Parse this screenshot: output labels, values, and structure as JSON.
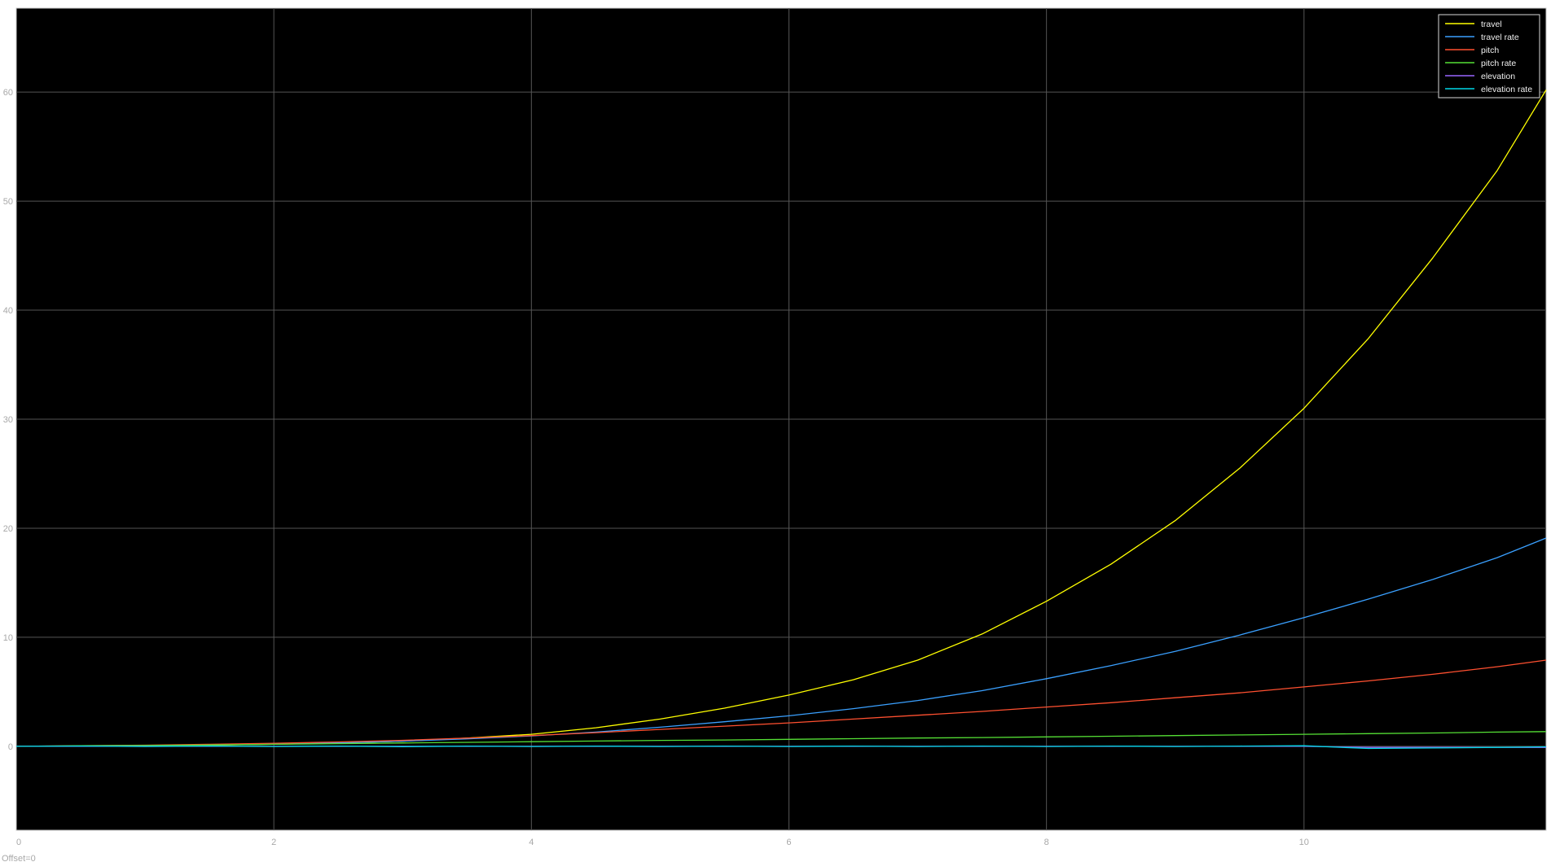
{
  "scope": {
    "offset_label": "Offset=0",
    "background_color": "#000000",
    "axes_color": "#c8c8c8",
    "grid_color": "#555555"
  },
  "chart_data": {
    "type": "line",
    "title": "",
    "xlabel": "",
    "ylabel": "",
    "xlim": [
      0,
      11.88
    ],
    "ylim": [
      -7.7,
      67.7
    ],
    "grid": true,
    "legend_position": "top-right",
    "x_ticks": [
      0,
      2,
      4,
      6,
      8,
      10
    ],
    "y_ticks": [
      0,
      10,
      20,
      30,
      40,
      50,
      60
    ],
    "x": [
      0,
      0.5,
      1,
      1.5,
      2,
      2.5,
      3,
      3.5,
      4,
      4.5,
      5,
      5.5,
      6,
      6.5,
      7,
      7.5,
      8,
      8.5,
      9,
      9.5,
      10,
      10.5,
      11,
      11.5,
      11.88
    ],
    "series": [
      {
        "name": "travel",
        "color": "#ffff00",
        "values": [
          0,
          0.02,
          0.05,
          0.1,
          0.18,
          0.3,
          0.47,
          0.75,
          1.1,
          1.7,
          2.5,
          3.5,
          4.7,
          6.1,
          7.9,
          10.3,
          13.3,
          16.7,
          20.7,
          25.5,
          31,
          37.4,
          44.8,
          52.8,
          60.2
        ]
      },
      {
        "name": "travel rate",
        "color": "#3aa0ff",
        "values": [
          0,
          0.03,
          0.06,
          0.12,
          0.2,
          0.32,
          0.47,
          0.68,
          0.95,
          1.3,
          1.75,
          2.25,
          2.8,
          3.45,
          4.2,
          5.1,
          6.2,
          7.4,
          8.7,
          10.2,
          11.8,
          13.5,
          15.3,
          17.3,
          19.1
        ]
      },
      {
        "name": "pitch",
        "color": "#ff5030",
        "values": [
          0,
          0.05,
          0.1,
          0.18,
          0.28,
          0.4,
          0.55,
          0.75,
          0.98,
          1.25,
          1.55,
          1.85,
          2.15,
          2.5,
          2.85,
          3.2,
          3.6,
          4.0,
          4.45,
          4.9,
          5.45,
          6.0,
          6.6,
          7.3,
          7.9
        ]
      },
      {
        "name": "pitch rate",
        "color": "#55e035",
        "values": [
          0,
          0.05,
          0.08,
          0.12,
          0.18,
          0.24,
          0.3,
          0.36,
          0.42,
          0.48,
          0.54,
          0.58,
          0.64,
          0.7,
          0.76,
          0.8,
          0.86,
          0.92,
          0.98,
          1.04,
          1.1,
          1.16,
          1.22,
          1.3,
          1.35
        ]
      },
      {
        "name": "elevation",
        "color": "#9966ff",
        "values": [
          0,
          0,
          0,
          0,
          0,
          0,
          0,
          0,
          0,
          0,
          0,
          0,
          0,
          0,
          0,
          0,
          0,
          0,
          0,
          0,
          0,
          -0.1,
          -0.1,
          -0.1,
          -0.1
        ]
      },
      {
        "name": "elevation rate",
        "color": "#00d8e8",
        "values": [
          0,
          0.02,
          -0.02,
          0.02,
          -0.02,
          0.02,
          -0.03,
          0.02,
          -0.02,
          0.02,
          -0.02,
          0.02,
          -0.02,
          0.02,
          -0.02,
          0.02,
          -0.02,
          0.02,
          -0.02,
          0.02,
          0.05,
          -0.2,
          -0.15,
          -0.1,
          -0.05
        ]
      }
    ]
  }
}
